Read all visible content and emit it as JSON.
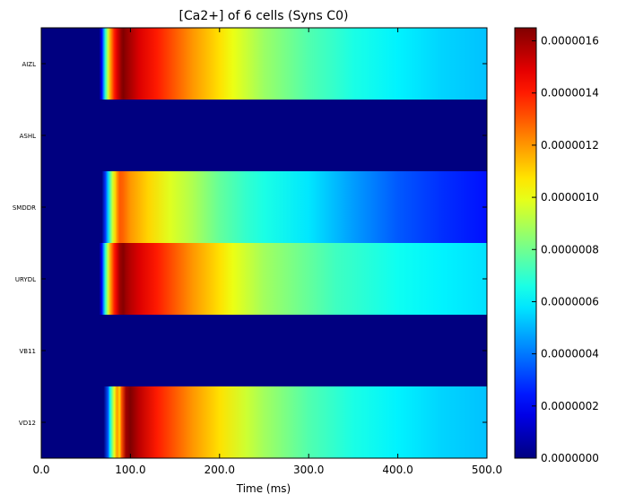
{
  "chart_data": {
    "type": "heatmap",
    "title": "[Ca2+] of 6 cells (Syns C0)",
    "xlabel": "Time (ms)",
    "ylabel": "",
    "xlim": [
      0,
      500
    ],
    "x_ticks": [
      "0.0",
      "100.0",
      "200.0",
      "300.0",
      "400.0",
      "500.0"
    ],
    "x_tick_values": [
      0,
      100,
      200,
      300,
      400,
      500
    ],
    "rows": [
      "AIZL",
      "ASHL",
      "SMDDR",
      "URYDL",
      "VB11",
      "VD12"
    ],
    "colormap": "jet",
    "colorbar": {
      "vmin": 0,
      "vmax": 1.65e-06,
      "ticks": [
        "0.0000000",
        "0.0000002",
        "0.0000004",
        "0.0000006",
        "0.0000008",
        "0.0000010",
        "0.0000012",
        "0.0000014",
        "0.0000016"
      ],
      "tick_values": [
        0,
        2e-07,
        4e-07,
        6e-07,
        8e-07,
        1e-06,
        1.2e-06,
        1.4e-06,
        1.6e-06
      ]
    },
    "series": [
      {
        "name": "AIZL",
        "x": [
          0,
          60,
          65,
          68,
          70,
          72,
          75,
          78,
          82,
          85,
          90,
          92,
          95,
          100,
          110,
          130,
          150,
          170,
          190,
          200,
          215,
          250,
          300,
          330,
          350,
          400,
          450,
          500
        ],
        "values": [
          0,
          0,
          0,
          2e-07,
          4.5e-07,
          7e-07,
          9.5e-07,
          1.2e-06,
          1.4e-06,
          1.5e-06,
          1.62e-06,
          1.65e-06,
          1.62e-06,
          1.58e-06,
          1.5e-06,
          1.4e-06,
          1.3e-06,
          1.2e-06,
          1.12e-06,
          1.08e-06,
          1e-06,
          8.7e-07,
          7.5e-07,
          7e-07,
          6.6e-07,
          6e-07,
          5.5e-07,
          5.2e-07
        ]
      },
      {
        "name": "ASHL",
        "x": [
          0,
          500
        ],
        "values": [
          0,
          0
        ]
      },
      {
        "name": "SMDDR",
        "x": [
          0,
          60,
          68,
          72,
          75,
          78,
          80,
          83,
          85,
          88,
          92,
          100,
          120,
          145,
          170,
          200,
          230,
          250,
          300,
          350,
          400,
          450,
          500
        ],
        "values": [
          0,
          0,
          0,
          3e-07,
          5.5e-07,
          8e-07,
          9.5e-07,
          1.1e-06,
          1.2e-06,
          1.3e-06,
          1.28e-06,
          1.2e-06,
          1.1e-06,
          9.8e-07,
          9e-07,
          7.8e-07,
          7e-07,
          6.6e-07,
          5.8e-07,
          4.6e-07,
          3.5e-07,
          2.8e-07,
          2.3e-07
        ]
      },
      {
        "name": "URYDL",
        "x": [
          0,
          60,
          65,
          68,
          70,
          72,
          75,
          78,
          82,
          85,
          88,
          92,
          95,
          100,
          110,
          130,
          150,
          170,
          190,
          200,
          215,
          250,
          300,
          330,
          350,
          400,
          450,
          500
        ],
        "values": [
          0,
          0,
          0,
          2e-07,
          4.5e-07,
          7e-07,
          9.5e-07,
          1.2e-06,
          1.4e-06,
          1.5e-06,
          1.6e-06,
          1.64e-06,
          1.6e-06,
          1.56e-06,
          1.5e-06,
          1.4e-06,
          1.3e-06,
          1.2e-06,
          1.12e-06,
          1.08e-06,
          1e-06,
          8.8e-07,
          7.8e-07,
          7.2e-07,
          7e-07,
          6.4e-07,
          6e-07,
          5.7e-07
        ]
      },
      {
        "name": "VB11",
        "x": [
          0,
          500
        ],
        "values": [
          0,
          0
        ]
      },
      {
        "name": "VD12",
        "x": [
          0,
          70,
          75,
          77,
          80,
          82,
          85,
          88,
          90,
          95,
          100,
          110,
          130,
          150,
          170,
          200,
          230,
          250,
          300,
          350,
          400,
          450,
          500
        ],
        "values": [
          0,
          0,
          3.5e-07,
          6e-07,
          8.5e-07,
          1e-06,
          1.2e-06,
          1.1e-06,
          1.3e-06,
          1.6e-06,
          1.65e-06,
          1.55e-06,
          1.4e-06,
          1.3e-06,
          1.2e-06,
          1.08e-06,
          9.5e-07,
          8.8e-07,
          7.5e-07,
          6.6e-07,
          6e-07,
          5.5e-07,
          5.2e-07
        ]
      }
    ]
  }
}
